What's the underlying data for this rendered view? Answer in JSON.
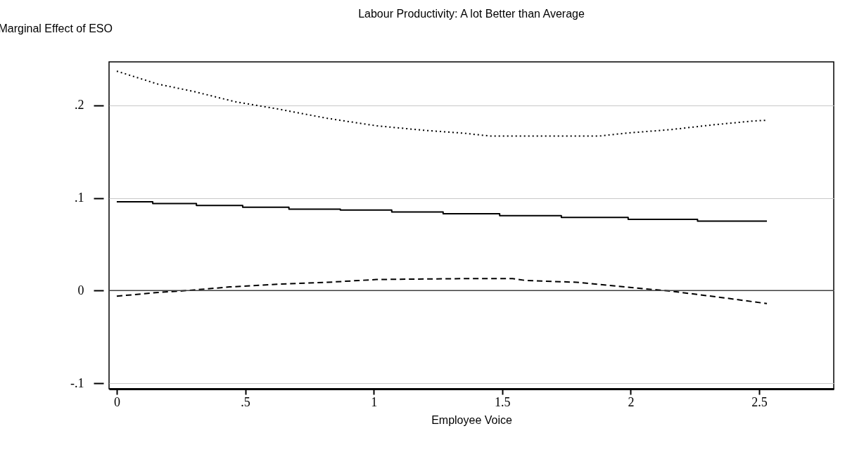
{
  "chart_data": {
    "type": "line",
    "title": "Labour Productivity: A lot Better than Average",
    "xlabel": "Employee Voice",
    "ylabel": "Marginal Effect of ESO",
    "xlim": [
      -0.03,
      2.79
    ],
    "xticks": [
      0,
      {
        "value": 0.5,
        "label": ".5"
      },
      1,
      1.5,
      2,
      2.5
    ],
    "ylim": [
      -0.106,
      0.247
    ],
    "yticks": [
      {
        "value": -0.1,
        "label": "-.1"
      },
      0,
      {
        "value": 0.1,
        "label": ".1"
      },
      {
        "value": 0.2,
        "label": ".2"
      }
    ],
    "grid": "y",
    "ref_lines": [
      {
        "axis": "y",
        "value": 0,
        "color": "#404040"
      }
    ],
    "series": [
      {
        "type": "step",
        "color": "#000000",
        "line_style": "solid",
        "x": [
          0,
          0.14,
          0.31,
          0.49,
          0.67,
          0.87,
          1.07,
          1.27,
          1.49,
          1.73,
          1.99,
          2.26,
          2.53
        ],
        "values": [
          0.096,
          0.094,
          0.092,
          0.09,
          0.088,
          0.087,
          0.085,
          0.083,
          0.081,
          0.079,
          0.077,
          0.075,
          0.075
        ]
      },
      {
        "type": "line",
        "color": "#000000",
        "line_style": "dotted",
        "x": [
          0,
          0.16,
          0.3,
          0.46,
          0.63,
          0.82,
          1.01,
          1.2,
          1.35,
          1.45,
          1.88,
          1.98,
          2.16,
          2.32,
          2.47,
          2.53
        ],
        "values": [
          0.237,
          0.223,
          0.215,
          0.204,
          0.196,
          0.186,
          0.178,
          0.173,
          0.17,
          0.167,
          0.167,
          0.17,
          0.174,
          0.179,
          0.183,
          0.184
        ]
      },
      {
        "type": "line",
        "color": "#000000",
        "line_style": "dashed",
        "x": [
          0,
          0.16,
          0.27,
          0.44,
          0.63,
          0.82,
          1.01,
          1.35,
          1.54,
          1.59,
          1.79,
          1.98,
          2.17,
          2.37,
          2.53
        ],
        "values": [
          -0.006,
          -0.002,
          0.0,
          0.004,
          0.007,
          0.009,
          0.012,
          0.013,
          0.013,
          0.011,
          0.009,
          0.004,
          -0.001,
          -0.008,
          -0.014
        ]
      }
    ]
  }
}
